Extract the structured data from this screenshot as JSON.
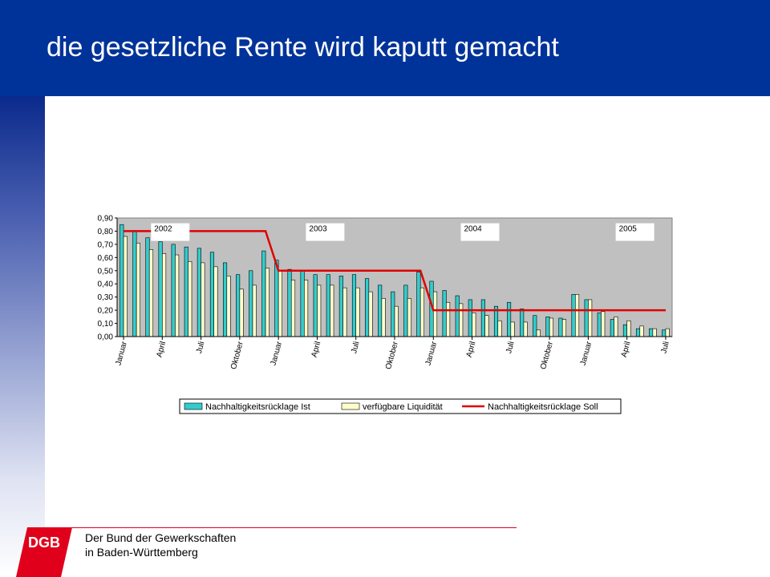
{
  "slide": {
    "title": "die gesetzliche Rente wird kaputt gemacht"
  },
  "footer": {
    "line1": "Der Bund der Gewerkschaften",
    "line2": "in Baden-Württemberg",
    "logo_text": "DGB"
  },
  "colors": {
    "header": "#003399",
    "ist": "#33cccc",
    "liquiditaet": "#ffffcc",
    "soll": "#e00000",
    "plot_bg": "#c0c0c0",
    "logo": "#e0001b"
  },
  "chart_data": {
    "type": "bar",
    "ylim": [
      0,
      0.9
    ],
    "yticks": [
      "0,00",
      "0,10",
      "0,20",
      "0,30",
      "0,40",
      "0,50",
      "0,60",
      "0,70",
      "0,80",
      "0,90"
    ],
    "x_tick_labels": [
      "Januar",
      "April",
      "Juli",
      "Oktober",
      "Januar",
      "April",
      "Juli",
      "Oktober",
      "Januar",
      "April",
      "Juli",
      "Oktober",
      "Januar",
      "April",
      "Juli"
    ],
    "year_labels": [
      "2002",
      "2003",
      "2004",
      "2005"
    ],
    "series": [
      {
        "name": "Nachhaltigkeitsrücklage Ist",
        "values": [
          0.85,
          0.8,
          0.75,
          0.72,
          0.7,
          0.68,
          0.67,
          0.64,
          0.56,
          0.47,
          0.5,
          0.65,
          0.58,
          0.51,
          0.5,
          0.47,
          0.47,
          0.46,
          0.47,
          0.44,
          0.39,
          0.34,
          0.39,
          0.49,
          0.42,
          0.35,
          0.31,
          0.28,
          0.28,
          0.23,
          0.26,
          0.21,
          0.16,
          0.15,
          0.14,
          0.32,
          0.28,
          0.18,
          0.13,
          0.09,
          0.06,
          0.06,
          0.05
        ]
      },
      {
        "name": "verfügbare Liquidität",
        "values": [
          0.76,
          0.71,
          0.66,
          0.63,
          0.62,
          0.57,
          0.56,
          0.53,
          0.46,
          0.36,
          0.39,
          0.52,
          0.5,
          0.43,
          0.43,
          0.39,
          0.39,
          0.37,
          0.37,
          0.34,
          0.29,
          0.23,
          0.29,
          0.37,
          0.34,
          0.26,
          0.25,
          0.18,
          0.16,
          0.12,
          0.11,
          0.11,
          0.05,
          0.14,
          0.13,
          0.32,
          0.28,
          0.19,
          0.15,
          0.12,
          0.08,
          0.06,
          0.06
        ]
      },
      {
        "name": "Nachhaltigkeitsrücklage Soll",
        "type": "line",
        "values": [
          0.8,
          0.8,
          0.8,
          0.8,
          0.8,
          0.8,
          0.8,
          0.8,
          0.8,
          0.8,
          0.8,
          0.8,
          0.5,
          0.5,
          0.5,
          0.5,
          0.5,
          0.5,
          0.5,
          0.5,
          0.5,
          0.5,
          0.5,
          0.5,
          0.2,
          0.2,
          0.2,
          0.2,
          0.2,
          0.2,
          0.2,
          0.2,
          0.2,
          0.2,
          0.2,
          0.2,
          0.2,
          0.2,
          0.2,
          0.2,
          0.2,
          0.2,
          0.2
        ]
      }
    ],
    "legend": "bottom",
    "grid": false
  }
}
